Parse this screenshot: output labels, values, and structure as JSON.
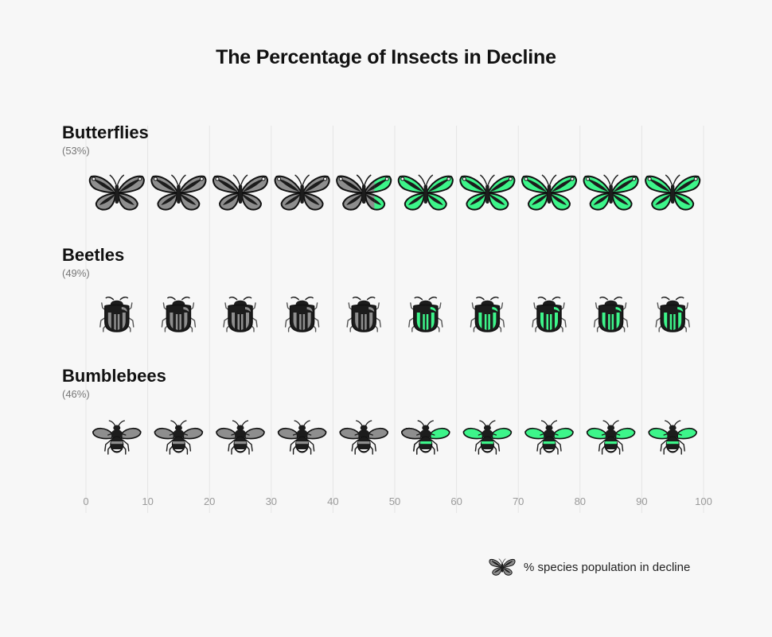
{
  "title": "The Percentage of Insects in Decline",
  "legend": {
    "label": "% species population in decline",
    "icon": "butterfly-icon"
  },
  "colors": {
    "background": "#f7f7f7",
    "decline_fill": "#3df58a",
    "neutral_fill": "#8e8e8e",
    "body": "#1c1c1c",
    "grid": "#e4e4e4"
  },
  "chart_data": {
    "type": "pictograph",
    "title": "The Percentage of Insects in Decline",
    "xlim": [
      0,
      100
    ],
    "ticks": [
      0,
      10,
      20,
      30,
      40,
      50,
      60,
      70,
      80,
      90,
      100
    ],
    "icons_per_row": 10,
    "units_per_icon": 10,
    "categories": [
      "Butterflies",
      "Beetles",
      "Bumblebees"
    ],
    "values": [
      53,
      49,
      46
    ],
    "value_labels": [
      "(53%)",
      "(49%)",
      "(46%)"
    ],
    "icons": [
      "butterfly-icon",
      "beetle-icon",
      "bumblebee-icon"
    ],
    "legend_label": "% species population in decline"
  }
}
